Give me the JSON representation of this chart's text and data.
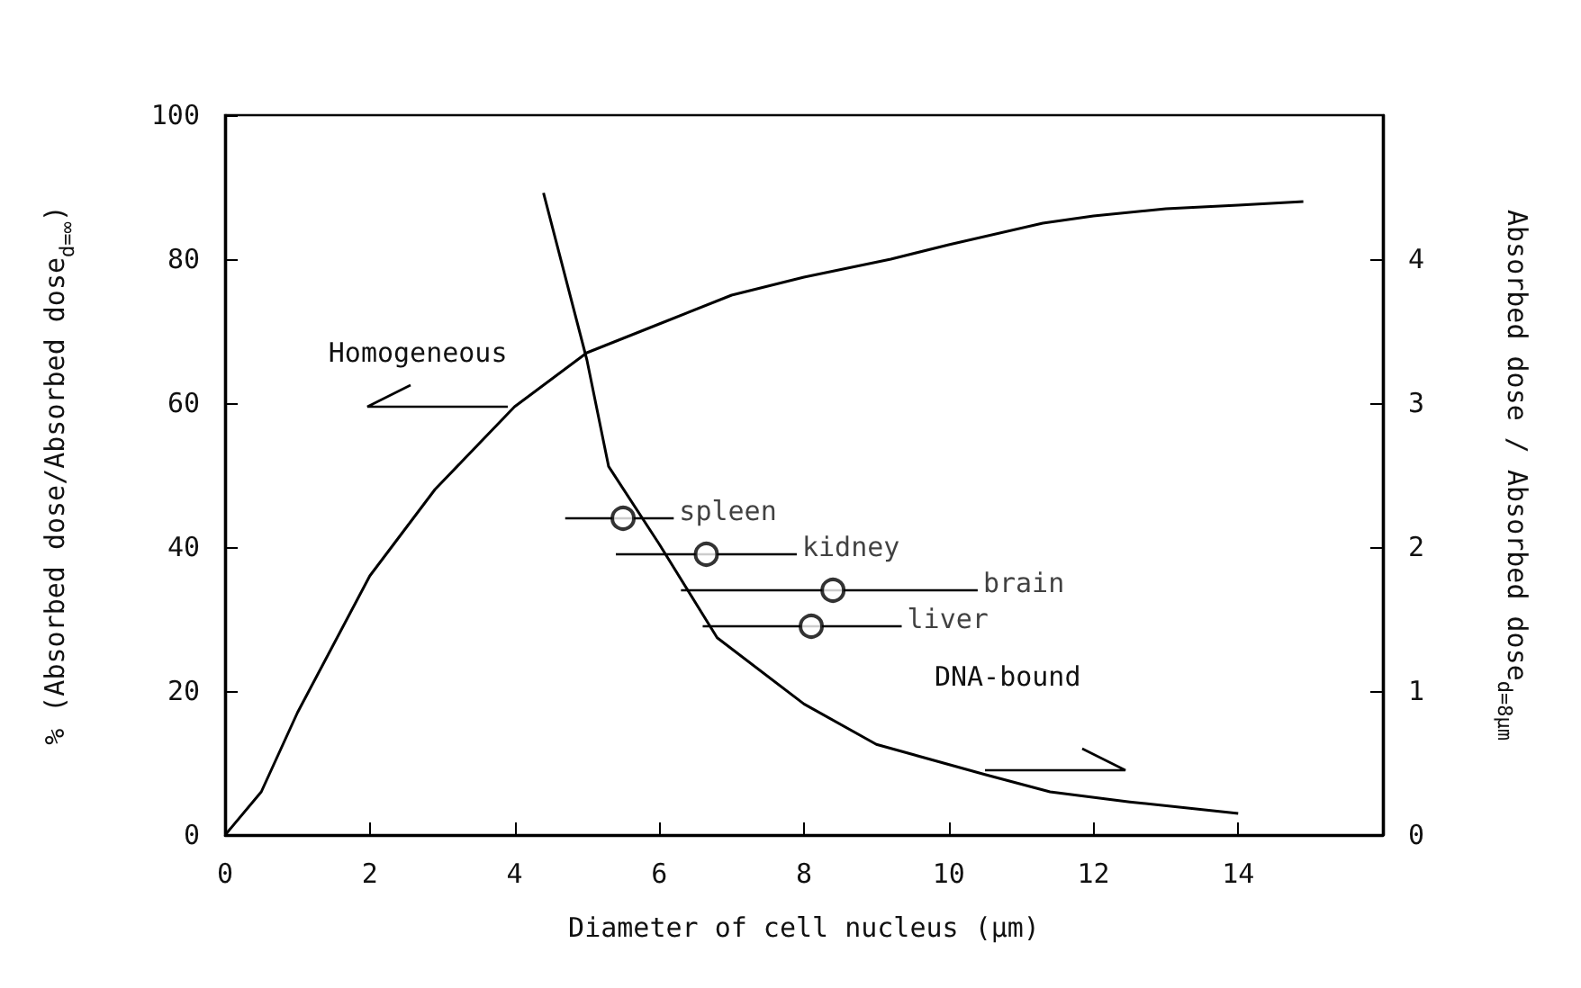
{
  "chart_data": {
    "type": "line",
    "xlabel": "Diameter of cell nucleus (μm)",
    "ylabel": "% (Absorbed dose/Absorbed dose$_{d=∞}$)",
    "y2label": "Absorbed dose / Absorbed dose$_{d=8μm}$",
    "xlim": [
      0,
      16
    ],
    "xticks": [
      0,
      2,
      4,
      6,
      8,
      10,
      12,
      14
    ],
    "ylim": [
      0,
      100
    ],
    "yticks": [
      0,
      20,
      40,
      60,
      80,
      100
    ],
    "y2lim": [
      0,
      5
    ],
    "y2ticks": [
      0,
      1,
      2,
      3,
      4
    ],
    "grid": false,
    "legend": false,
    "annotations": [
      {
        "text": "Homogeneous",
        "x": 3.9,
        "y": 59.5
      },
      {
        "text": "DNA-bound",
        "x": 10.5,
        "y": 9
      }
    ],
    "series": [
      {
        "marker": "none",
        "color": "#000000",
        "x": [
          0,
          0.5,
          1,
          2,
          2.9,
          4,
          5,
          6,
          7,
          8,
          9.2,
          10,
          11.3,
          12,
          13,
          14,
          14.9
        ],
        "values": [
          0,
          6,
          17,
          36,
          48,
          59.5,
          67,
          71,
          75,
          77.5,
          80,
          82,
          85,
          86,
          87,
          87.5,
          88
        ]
      },
      {
        "axis": "y2",
        "marker": "none",
        "color": "#000000",
        "x": [
          4.4,
          5,
          5.3,
          6,
          6.8,
          8,
          9,
          10.5,
          11.4,
          12.5,
          14
        ],
        "values": [
          4.46,
          3.3,
          2.56,
          2.02,
          1.37,
          0.91,
          0.63,
          0.42,
          0.3,
          0.23,
          0.15
        ]
      },
      {
        "type": "scatter",
        "name": "spleen",
        "marker": "circle",
        "color": "#000000",
        "x": [
          5.5
        ],
        "values": [
          44
        ],
        "xerrors": [
          [
            4.7,
            6.2
          ]
        ]
      },
      {
        "type": "scatter",
        "name": "kidney",
        "marker": "circle",
        "color": "#000000",
        "x": [
          6.65
        ],
        "values": [
          39
        ],
        "xerrors": [
          [
            5.4,
            7.9
          ]
        ]
      },
      {
        "type": "scatter",
        "name": "brain",
        "marker": "circle",
        "color": "#000000",
        "x": [
          8.4
        ],
        "values": [
          34
        ],
        "xerrors": [
          [
            6.3,
            10.4
          ]
        ]
      },
      {
        "type": "scatter",
        "name": "liver",
        "marker": "circle",
        "color": "#000000",
        "x": [
          8.1
        ],
        "values": [
          29
        ],
        "xerrors": [
          [
            6.6,
            9.35
          ]
        ]
      }
    ]
  }
}
